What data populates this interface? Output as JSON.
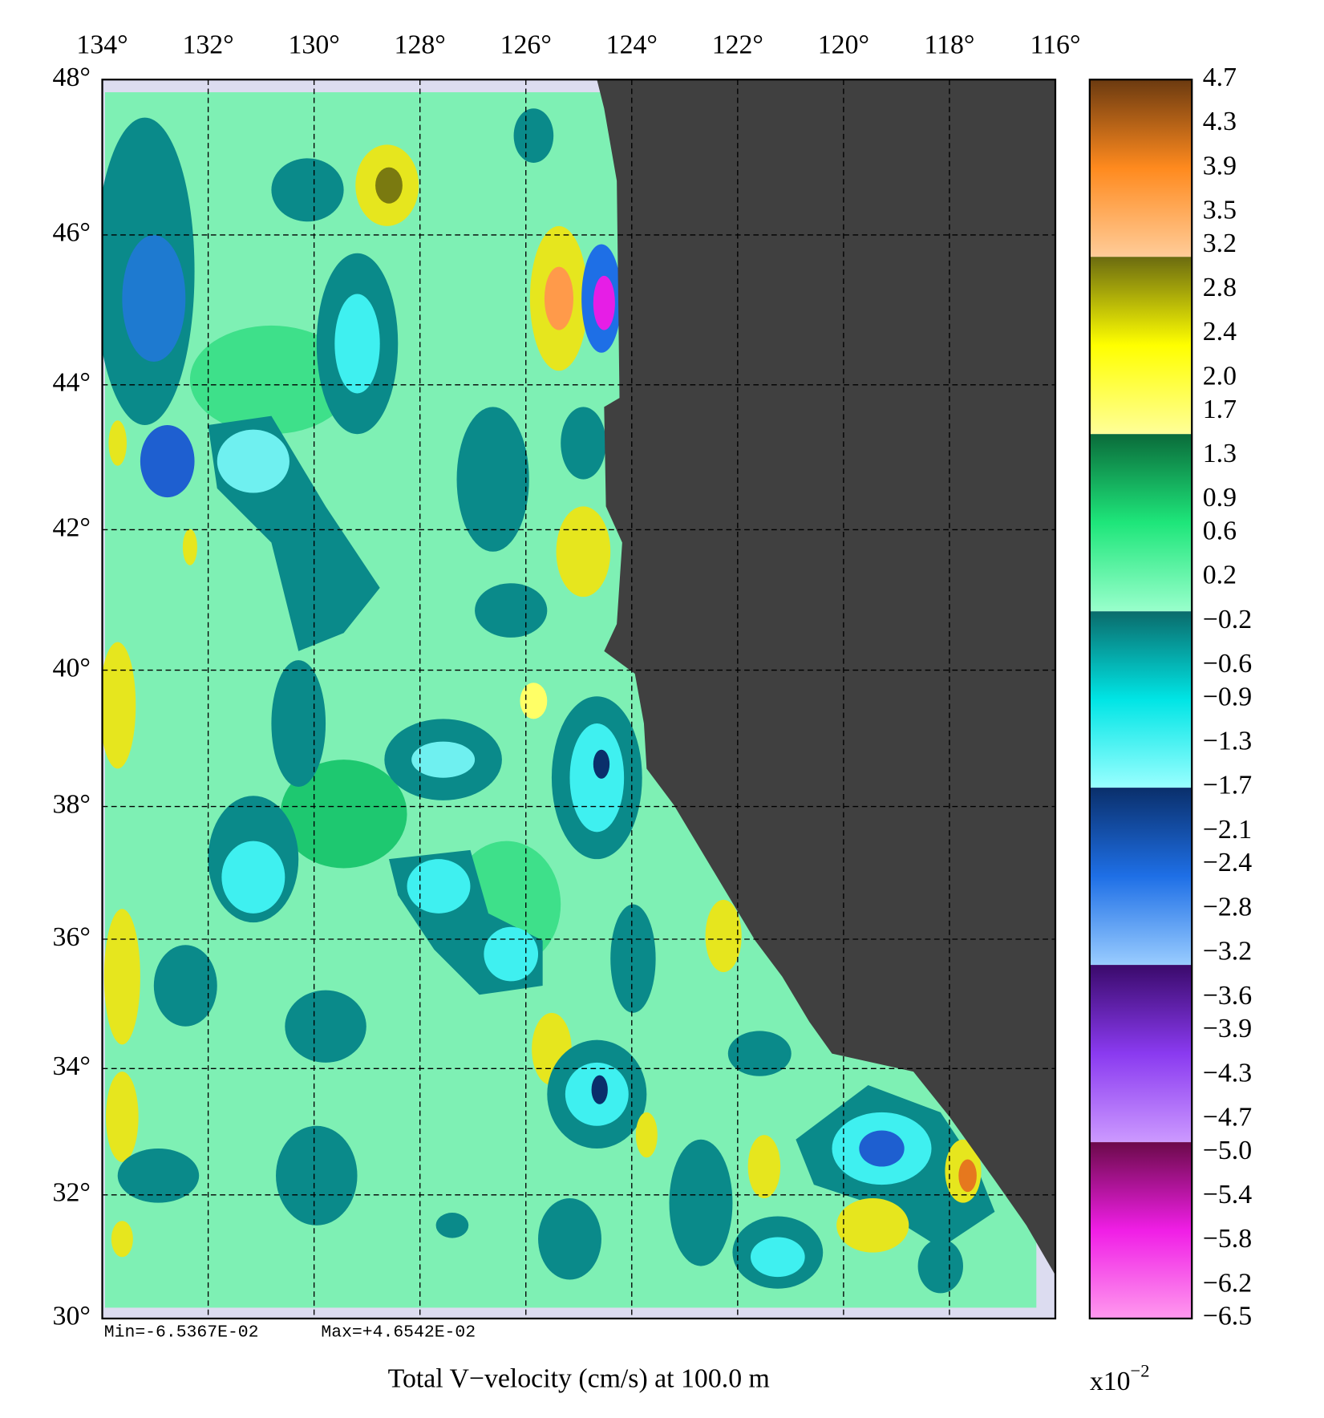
{
  "map": {
    "xlim": [
      134,
      116
    ],
    "ylim": [
      30,
      48
    ],
    "grid": true,
    "xticks": [
      {
        "value": 134,
        "label": "134°"
      },
      {
        "value": 132,
        "label": "132°"
      },
      {
        "value": 130,
        "label": "130°"
      },
      {
        "value": 128,
        "label": "128°"
      },
      {
        "value": 126,
        "label": "126°"
      },
      {
        "value": 124,
        "label": "124°"
      },
      {
        "value": 122,
        "label": "122°"
      },
      {
        "value": 120,
        "label": "120°"
      },
      {
        "value": 118,
        "label": "118°"
      },
      {
        "value": 116,
        "label": "116°"
      }
    ],
    "yticks": [
      {
        "value": 48,
        "label": "48°"
      },
      {
        "value": 46,
        "label": "46°"
      },
      {
        "value": 44,
        "label": "44°"
      },
      {
        "value": 42,
        "label": "42°"
      },
      {
        "value": 40,
        "label": "40°"
      },
      {
        "value": 38,
        "label": "38°"
      },
      {
        "value": 36,
        "label": "36°"
      },
      {
        "value": 34,
        "label": "34°"
      },
      {
        "value": 32,
        "label": "32°"
      },
      {
        "value": 30,
        "label": "30°"
      }
    ],
    "min_label": "Min=-6.5367E-02",
    "max_label": "Max=+4.6542E-02",
    "title": "Total V−velocity (cm/s) at 100.0 m",
    "colorbar": {
      "lim": [
        -6.5,
        4.7
      ],
      "scale_label": "x10",
      "scale_exponent": "−2",
      "ticks": [
        {
          "value": 4.7,
          "label": "4.7"
        },
        {
          "value": 4.3,
          "label": "4.3"
        },
        {
          "value": 3.9,
          "label": "3.9"
        },
        {
          "value": 3.5,
          "label": "3.5"
        },
        {
          "value": 3.2,
          "label": "3.2"
        },
        {
          "value": 2.8,
          "label": "2.8"
        },
        {
          "value": 2.4,
          "label": "2.4"
        },
        {
          "value": 2.0,
          "label": "2.0"
        },
        {
          "value": 1.7,
          "label": "1.7"
        },
        {
          "value": 1.3,
          "label": "1.3"
        },
        {
          "value": 0.9,
          "label": "0.9"
        },
        {
          "value": 0.6,
          "label": "0.6"
        },
        {
          "value": 0.2,
          "label": "0.2"
        },
        {
          "value": -0.2,
          "label": "−0.2"
        },
        {
          "value": -0.6,
          "label": "−0.6"
        },
        {
          "value": -0.9,
          "label": "−0.9"
        },
        {
          "value": -1.3,
          "label": "−1.3"
        },
        {
          "value": -1.7,
          "label": "−1.7"
        },
        {
          "value": -2.1,
          "label": "−2.1"
        },
        {
          "value": -2.4,
          "label": "−2.4"
        },
        {
          "value": -2.8,
          "label": "−2.8"
        },
        {
          "value": -3.2,
          "label": "−3.2"
        },
        {
          "value": -3.6,
          "label": "−3.6"
        },
        {
          "value": -3.9,
          "label": "−3.9"
        },
        {
          "value": -4.3,
          "label": "−4.3"
        },
        {
          "value": -4.7,
          "label": "−4.7"
        },
        {
          "value": -5.0,
          "label": "−5.0"
        },
        {
          "value": -5.4,
          "label": "−5.4"
        },
        {
          "value": -5.8,
          "label": "−5.8"
        },
        {
          "value": -6.2,
          "label": "−6.2"
        },
        {
          "value": -6.5,
          "label": "−6.5"
        }
      ]
    }
  }
}
